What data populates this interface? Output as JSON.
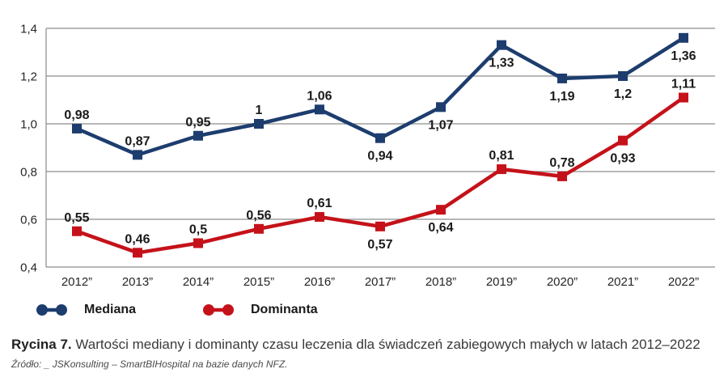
{
  "chart_data": {
    "type": "line",
    "title": "",
    "xlabel": "",
    "ylabel": "",
    "categories": [
      "2012”",
      "2013”",
      "2014”",
      "2015”",
      "2016”",
      "2017”",
      "2018”",
      "2019”",
      "2020”",
      "2021”",
      "2022”"
    ],
    "series": [
      {
        "name": "Mediana",
        "color": "#1D3D6E",
        "values": [
          0.98,
          0.87,
          0.95,
          1,
          1.06,
          0.94,
          1.07,
          1.33,
          1.19,
          1.2,
          1.36
        ],
        "labels": [
          "0,98",
          "0,87",
          "0,95",
          "1",
          "1,06",
          "0,94",
          "1,07",
          "1,33",
          "1,19",
          "1,2",
          "1,36"
        ],
        "label_side": [
          "above",
          "above",
          "above",
          "above",
          "above",
          "below",
          "below",
          "below",
          "below",
          "below",
          "below"
        ]
      },
      {
        "name": "Dominanta",
        "color": "#C5121A",
        "values": [
          0.55,
          0.46,
          0.5,
          0.56,
          0.61,
          0.57,
          0.64,
          0.81,
          0.78,
          0.93,
          1.11
        ],
        "labels": [
          "0,55",
          "0,46",
          "0,5",
          "0,56",
          "0,61",
          "0,57",
          "0,64",
          "0,81",
          "0,78",
          "0,93",
          "1,11"
        ],
        "label_side": [
          "above",
          "above",
          "above",
          "above",
          "above",
          "below",
          "below",
          "above",
          "above",
          "below",
          "above"
        ]
      }
    ],
    "ylim": [
      0.4,
      1.4
    ],
    "y_ticks": [
      {
        "value": 0.4,
        "label": "0,4"
      },
      {
        "value": 0.6,
        "label": "0,6"
      },
      {
        "value": 0.8,
        "label": "0,8"
      },
      {
        "value": 1.0,
        "label": "1,0"
      },
      {
        "value": 1.2,
        "label": "1,2"
      },
      {
        "value": 1.4,
        "label": "1,4"
      }
    ],
    "grid": "horizontal",
    "legend_position": "bottom-left"
  },
  "legend": {
    "items": [
      {
        "label": "Mediana",
        "color": "#1D3D6E"
      },
      {
        "label": "Dominanta",
        "color": "#C5121A"
      }
    ]
  },
  "caption": {
    "prefix": "Rycina 7.",
    "text": " Wartości mediany i dominanty czasu leczenia dla świadczeń zabiegowych małych w latach 2012–2022"
  },
  "source": "Źródło: _ JSKonsulting – SmartBIHospital na bazie danych NFZ.",
  "colors": {
    "grid": "#8C8C8C",
    "axis_text": "#262626",
    "value_label": "#1A1A1A",
    "background": "#FFFFFF"
  }
}
